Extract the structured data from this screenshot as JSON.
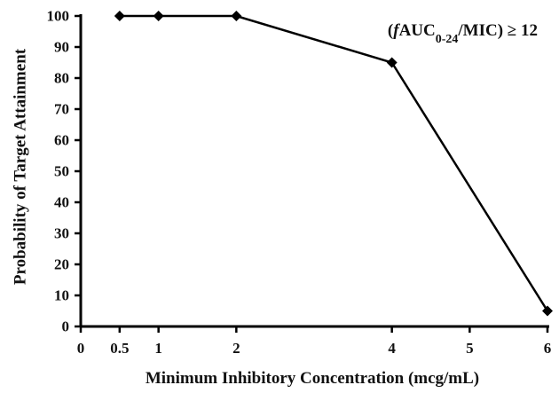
{
  "chart_data": {
    "type": "line",
    "x": [
      0.5,
      1,
      2,
      4,
      6
    ],
    "series": [
      {
        "values": [
          100,
          100,
          100,
          85,
          5
        ],
        "color": "#000000",
        "marker": "diamond"
      }
    ],
    "xlabel": "Minimum Inhibitory Concentration (mcg/mL)",
    "ylabel": "Probability of Target Attainment",
    "xlim": [
      0,
      6
    ],
    "ylim": [
      0,
      100
    ],
    "xticks": [
      0,
      0.5,
      1,
      2,
      4,
      5,
      6
    ],
    "xtick_labels": [
      "0",
      "0.5",
      "1",
      "2",
      "4",
      "5",
      "6"
    ],
    "yticks": [
      0,
      10,
      20,
      30,
      40,
      50,
      60,
      70,
      80,
      90,
      100
    ],
    "ytick_labels": [
      "0",
      "10",
      "20",
      "30",
      "40",
      "50",
      "60",
      "70",
      "80",
      "90",
      "100"
    ],
    "annotation": {
      "prefix": "(",
      "italic": "f",
      "main": "AUC",
      "sub": "0-24",
      "suffix": "/MIC) ≥ 12"
    },
    "grid": false
  }
}
